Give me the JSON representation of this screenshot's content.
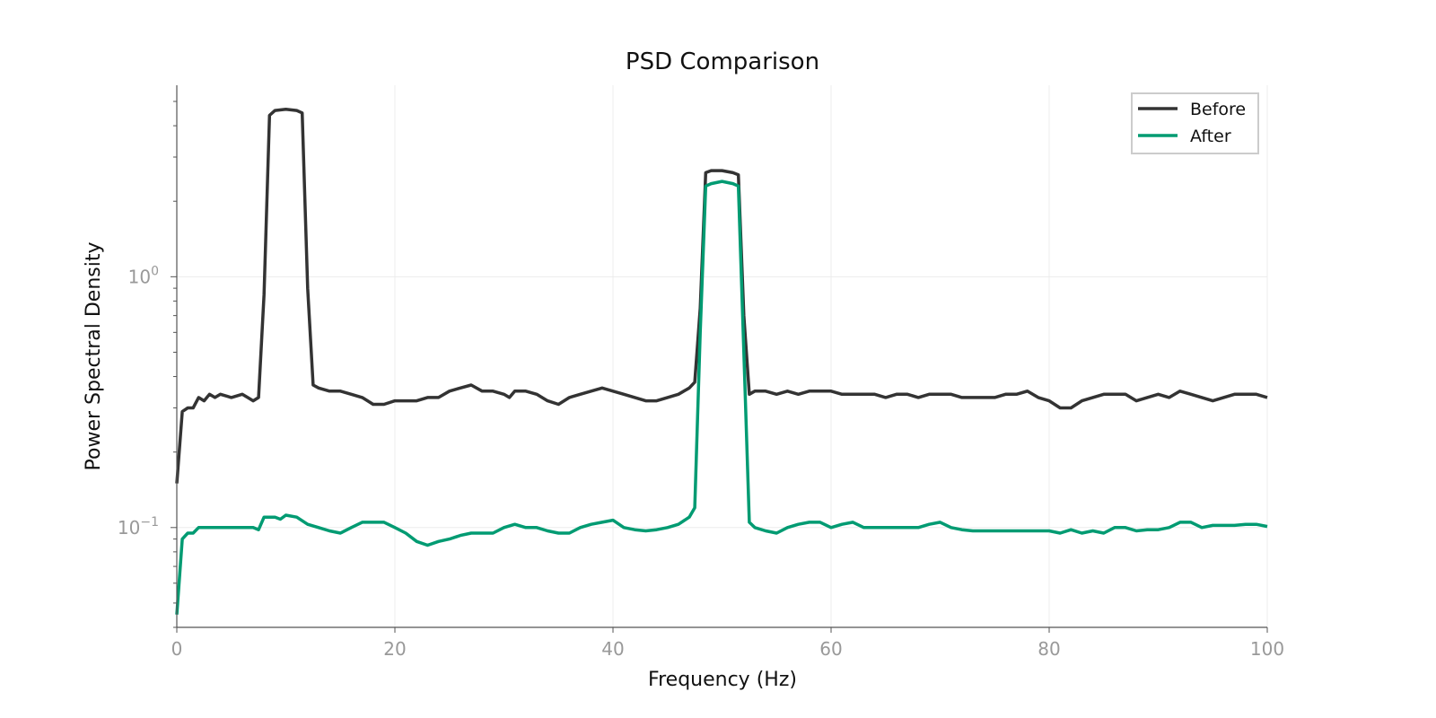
{
  "chart_data": {
    "type": "line",
    "title": "PSD Comparison",
    "xlabel": "Frequency (Hz)",
    "ylabel": "Power Spectral Density",
    "xlim": [
      0,
      100
    ],
    "ylim": [
      0.04,
      5.8
    ],
    "yscale": "log",
    "grid": true,
    "legend_position": "top-right",
    "xticks": [
      {
        "value": 0,
        "label": "0"
      },
      {
        "value": 20,
        "label": "20"
      },
      {
        "value": 40,
        "label": "40"
      },
      {
        "value": 60,
        "label": "60"
      },
      {
        "value": 80,
        "label": "80"
      },
      {
        "value": 100,
        "label": "100"
      }
    ],
    "yticks": [
      {
        "value": 0.1,
        "base": "10",
        "exp": "−1"
      },
      {
        "value": 1,
        "base": "10",
        "exp": "0"
      }
    ],
    "series": [
      {
        "name": "Before",
        "color": "#333333",
        "x": [
          0,
          0.5,
          1,
          1.5,
          2,
          2.5,
          3,
          3.5,
          4,
          5,
          6,
          6.5,
          7,
          7.5,
          8,
          8.5,
          9,
          10,
          11,
          11.5,
          12,
          12.5,
          13,
          14,
          15,
          16,
          17,
          17.5,
          18,
          19,
          20,
          21,
          22,
          23,
          24,
          25,
          26,
          27,
          28,
          29,
          30,
          30.5,
          31,
          32,
          33,
          34,
          35,
          36,
          37,
          38,
          39,
          40,
          41,
          42,
          43,
          44,
          45,
          46,
          47,
          47.5,
          48,
          48.5,
          49,
          50,
          51,
          51.5,
          52,
          52.5,
          53,
          54,
          55,
          56,
          57,
          58,
          59,
          60,
          61,
          62,
          63,
          64,
          65,
          66,
          67,
          68,
          69,
          70,
          71,
          72,
          73,
          74,
          75,
          76,
          77,
          78,
          79,
          80,
          81,
          82,
          83,
          84,
          85,
          86,
          87,
          88,
          89,
          90,
          91,
          92,
          93,
          94,
          95,
          96,
          97,
          98,
          99,
          100
        ],
        "y": [
          0.15,
          0.29,
          0.3,
          0.3,
          0.33,
          0.32,
          0.34,
          0.33,
          0.34,
          0.33,
          0.34,
          0.33,
          0.32,
          0.33,
          0.85,
          4.4,
          4.6,
          4.65,
          4.6,
          4.5,
          0.9,
          0.37,
          0.36,
          0.35,
          0.35,
          0.34,
          0.33,
          0.32,
          0.31,
          0.31,
          0.32,
          0.32,
          0.32,
          0.33,
          0.33,
          0.35,
          0.36,
          0.37,
          0.35,
          0.35,
          0.34,
          0.33,
          0.35,
          0.35,
          0.34,
          0.32,
          0.31,
          0.33,
          0.34,
          0.35,
          0.36,
          0.35,
          0.34,
          0.33,
          0.32,
          0.32,
          0.33,
          0.34,
          0.36,
          0.38,
          0.75,
          2.6,
          2.65,
          2.65,
          2.6,
          2.55,
          0.7,
          0.34,
          0.35,
          0.35,
          0.34,
          0.35,
          0.34,
          0.35,
          0.35,
          0.35,
          0.34,
          0.34,
          0.34,
          0.34,
          0.33,
          0.34,
          0.34,
          0.33,
          0.34,
          0.34,
          0.34,
          0.33,
          0.33,
          0.33,
          0.33,
          0.34,
          0.34,
          0.35,
          0.33,
          0.32,
          0.3,
          0.3,
          0.32,
          0.33,
          0.34,
          0.34,
          0.34,
          0.32,
          0.33,
          0.34,
          0.33,
          0.35,
          0.34,
          0.33,
          0.32,
          0.33,
          0.34,
          0.34,
          0.34,
          0.33
        ]
      },
      {
        "name": "After",
        "color": "#009B72",
        "x": [
          0,
          0.5,
          1,
          1.5,
          2,
          2.5,
          3,
          4,
          5,
          6,
          7,
          7.5,
          8,
          9,
          9.5,
          10,
          11,
          12,
          13,
          14,
          15,
          16,
          17,
          18,
          19,
          20,
          21,
          22,
          23,
          24,
          25,
          26,
          27,
          28,
          29,
          30,
          31,
          32,
          33,
          34,
          35,
          36,
          37,
          38,
          39,
          40,
          41,
          42,
          43,
          44,
          45,
          46,
          47,
          47.5,
          48,
          48.5,
          49,
          50,
          51,
          51.5,
          52,
          52.5,
          53,
          54,
          55,
          56,
          57,
          58,
          59,
          60,
          61,
          62,
          63,
          64,
          65,
          66,
          67,
          68,
          69,
          70,
          71,
          72,
          73,
          74,
          75,
          76,
          77,
          78,
          79,
          80,
          81,
          82,
          83,
          84,
          85,
          86,
          87,
          88,
          89,
          90,
          91,
          92,
          93,
          94,
          95,
          96,
          97,
          98,
          99,
          100
        ],
        "y": [
          0.045,
          0.09,
          0.095,
          0.095,
          0.1,
          0.1,
          0.1,
          0.1,
          0.1,
          0.1,
          0.1,
          0.098,
          0.11,
          0.11,
          0.108,
          0.112,
          0.11,
          0.103,
          0.1,
          0.097,
          0.095,
          0.1,
          0.105,
          0.105,
          0.105,
          0.1,
          0.095,
          0.088,
          0.085,
          0.088,
          0.09,
          0.093,
          0.095,
          0.095,
          0.095,
          0.1,
          0.103,
          0.1,
          0.1,
          0.097,
          0.095,
          0.095,
          0.1,
          0.103,
          0.105,
          0.107,
          0.1,
          0.098,
          0.097,
          0.098,
          0.1,
          0.103,
          0.11,
          0.12,
          0.6,
          2.3,
          2.35,
          2.4,
          2.35,
          2.3,
          0.5,
          0.105,
          0.1,
          0.097,
          0.095,
          0.1,
          0.103,
          0.105,
          0.105,
          0.1,
          0.103,
          0.105,
          0.1,
          0.1,
          0.1,
          0.1,
          0.1,
          0.1,
          0.103,
          0.105,
          0.1,
          0.098,
          0.097,
          0.097,
          0.097,
          0.097,
          0.097,
          0.097,
          0.097,
          0.097,
          0.095,
          0.098,
          0.095,
          0.097,
          0.095,
          0.1,
          0.1,
          0.097,
          0.098,
          0.098,
          0.1,
          0.105,
          0.105,
          0.1,
          0.102,
          0.102,
          0.102,
          0.103,
          0.103,
          0.101
        ]
      }
    ]
  }
}
